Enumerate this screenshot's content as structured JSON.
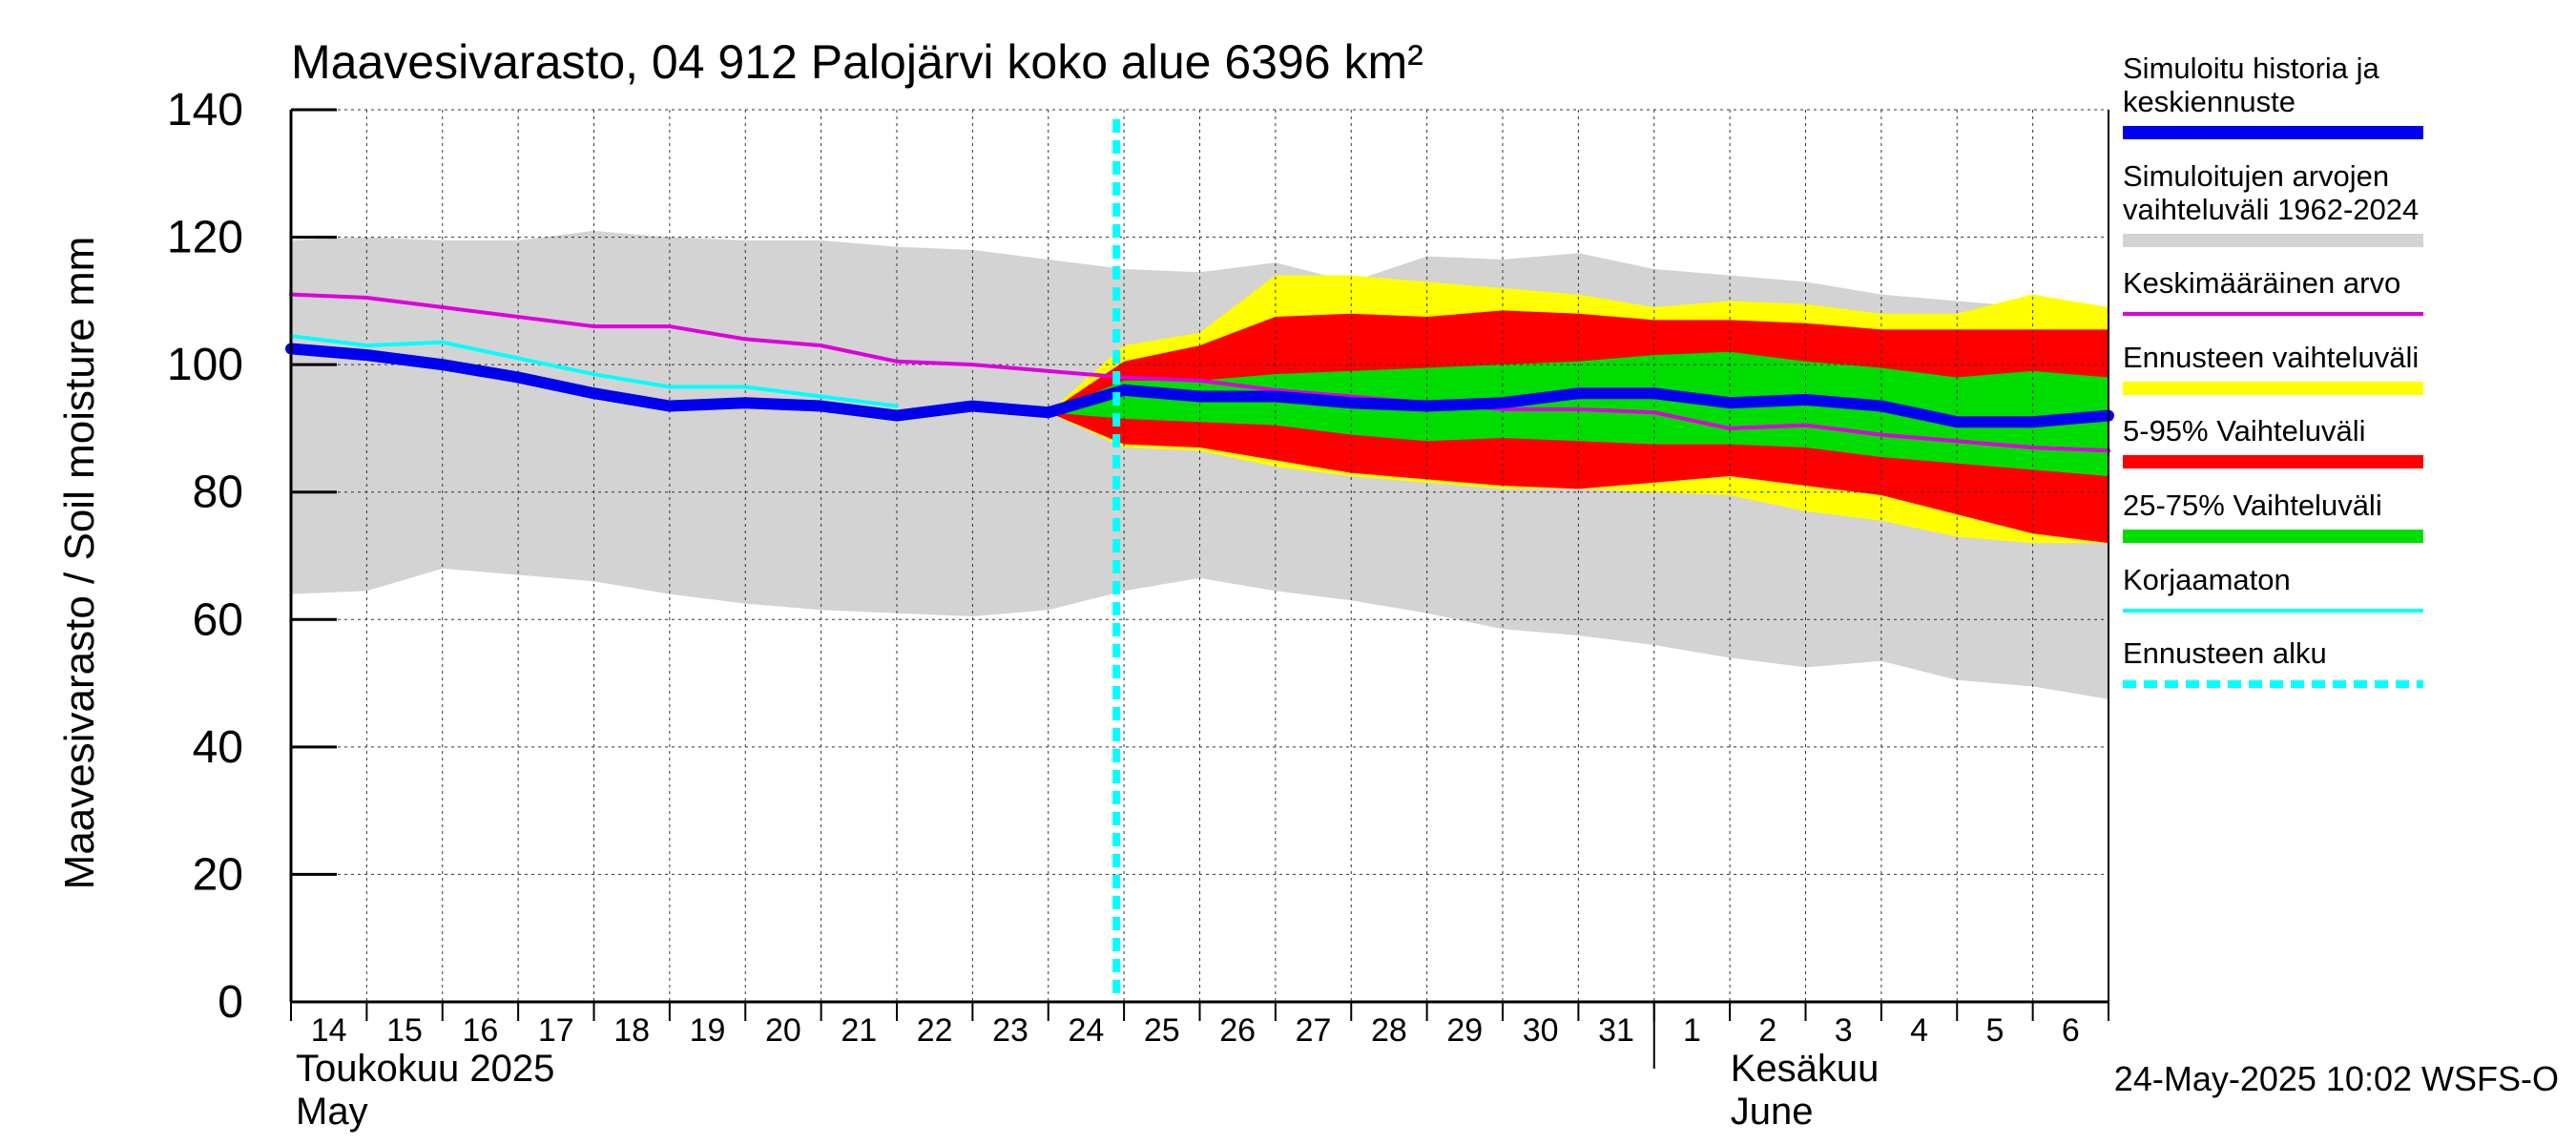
{
  "chart_data": {
    "type": "area",
    "title": "Maavesivarasto, 04 912 Palojärvi koko alue 6396 km²",
    "ylabel": "Maavesivarasto / Soil moisture   mm",
    "ylim": [
      0,
      140
    ],
    "y_ticks": [
      "0",
      "20",
      "40",
      "60",
      "80",
      "100",
      "120",
      "140"
    ],
    "x_range": [
      0,
      24
    ],
    "x_tick_labels": [
      "14",
      "15",
      "16",
      "17",
      "18",
      "19",
      "20",
      "21",
      "22",
      "23",
      "24",
      "25",
      "26",
      "27",
      "28",
      "29",
      "30",
      "31",
      "1",
      "2",
      "3",
      "4",
      "5",
      "6"
    ],
    "month_labels": [
      {
        "fi": "Toukokuu  2025",
        "en": "May",
        "start_index": 0
      },
      {
        "fi": "Kesäkuu",
        "en": "June",
        "start_index": 18
      }
    ],
    "forecast_start_x": 10.9,
    "grid": true,
    "legend_position": "right",
    "x": [
      0,
      1,
      2,
      3,
      4,
      5,
      6,
      7,
      8,
      9,
      10,
      11,
      12,
      13,
      14,
      15,
      16,
      17,
      18,
      19,
      20,
      21,
      22,
      23,
      24
    ],
    "series": [
      {
        "name": "Simuloitujen arvojen vaihteluväli 1962-2024",
        "role": "range_band",
        "color": "#d3d3d3",
        "lower": [
          64,
          64.5,
          68,
          67,
          66,
          64,
          62.5,
          61.5,
          61,
          60.5,
          61.5,
          64.5,
          66.5,
          64.5,
          63,
          61,
          58.5,
          57.5,
          56,
          54,
          52.5,
          53.5,
          50.5,
          49.5,
          47.5
        ],
        "upper": [
          119.5,
          120,
          119.5,
          119.5,
          121,
          120,
          119.5,
          119.5,
          118.5,
          118,
          116.5,
          115,
          114.5,
          116,
          113,
          117,
          116.5,
          117.5,
          115,
          114,
          113,
          111,
          110,
          109,
          109
        ]
      },
      {
        "name": "Ennusteen vaihteluväli",
        "role": "forecast_band",
        "color": "#ffff00",
        "start_index": 10,
        "lower": [
          92.5,
          87,
          86.5,
          84,
          82.5,
          81.5,
          80.5,
          80.5,
          80,
          79.5,
          77,
          75.5,
          73,
          72,
          72
        ],
        "upper": [
          92.5,
          103,
          105,
          114,
          114,
          113,
          112,
          111,
          109,
          110,
          109.5,
          108,
          108,
          111,
          109
        ]
      },
      {
        "name": "5-95% Vaihteluväli",
        "role": "forecast_band",
        "color": "#ff0000",
        "start_index": 10,
        "lower": [
          92.5,
          87.5,
          87,
          85,
          83,
          82,
          81,
          80.5,
          81.5,
          82.5,
          81,
          79.5,
          76.5,
          73.5,
          72
        ],
        "upper": [
          92.5,
          100.5,
          103,
          107.5,
          108,
          107.5,
          108.5,
          108,
          107,
          107,
          106.5,
          105.5,
          105.5,
          105.5,
          105.5
        ]
      },
      {
        "name": "25-75% Vaihteluväli",
        "role": "forecast_band",
        "color": "#00dd00",
        "start_index": 10,
        "lower": [
          92.5,
          91.5,
          91,
          90.5,
          89,
          88,
          88.5,
          88,
          87.5,
          87.5,
          87,
          85.5,
          84.5,
          83.5,
          82.5
        ],
        "upper": [
          92.5,
          97.5,
          97.5,
          98.5,
          99,
          99.5,
          100,
          100.5,
          101.5,
          102,
          100.5,
          99.5,
          98,
          99,
          98
        ]
      },
      {
        "name": "Keskimääräinen arvo",
        "role": "line",
        "color": "#dd00dd",
        "values": [
          111,
          110.5,
          109,
          107.5,
          106,
          106,
          104,
          103,
          100.5,
          100,
          99,
          98,
          97.5,
          96,
          95,
          94,
          93,
          93,
          92.5,
          90,
          90.5,
          89,
          88,
          87,
          86.5
        ]
      },
      {
        "name": "Korjaamaton",
        "role": "line",
        "color": "#00ffff",
        "values": [
          104.5,
          103,
          103.5,
          101,
          98.5,
          96.5,
          96.5,
          95,
          93.5,
          null,
          null,
          null,
          null,
          null,
          null,
          null,
          null,
          null,
          null,
          null,
          null,
          null,
          null,
          null,
          null
        ]
      },
      {
        "name": "Simuloitu historia ja keskiennuste",
        "role": "line_thick",
        "color": "#0000ee",
        "values": [
          102.5,
          101.5,
          100,
          98,
          95.5,
          93.5,
          94,
          93.5,
          92,
          93.5,
          92.5,
          96,
          95,
          95,
          94,
          93.5,
          94,
          95.5,
          95.5,
          94,
          94.5,
          93.5,
          91,
          91,
          92
        ]
      }
    ],
    "legend": [
      {
        "label": "Simuloitu historia ja keskiennuste",
        "color": "#0000ee",
        "style": "thick"
      },
      {
        "label": "Simuloitujen arvojen vaihteluväli 1962-2024",
        "color": "#d3d3d3",
        "style": "thick"
      },
      {
        "label": "Keskimääräinen arvo",
        "color": "#dd00dd",
        "style": "thin"
      },
      {
        "label": "Ennusteen vaihteluväli",
        "color": "#ffff00",
        "style": "thick"
      },
      {
        "label": "5-95% Vaihteluväli",
        "color": "#ff0000",
        "style": "thick"
      },
      {
        "label": "25-75% Vaihteluväli",
        "color": "#00dd00",
        "style": "thick"
      },
      {
        "label": "Korjaamaton",
        "color": "#00ffff",
        "style": "thin"
      },
      {
        "label": "Ennusteen alku",
        "color": "#00ffff",
        "style": "dashed"
      }
    ]
  },
  "footer": {
    "timestamp": "24-May-2025 10:02 WSFS-O"
  }
}
